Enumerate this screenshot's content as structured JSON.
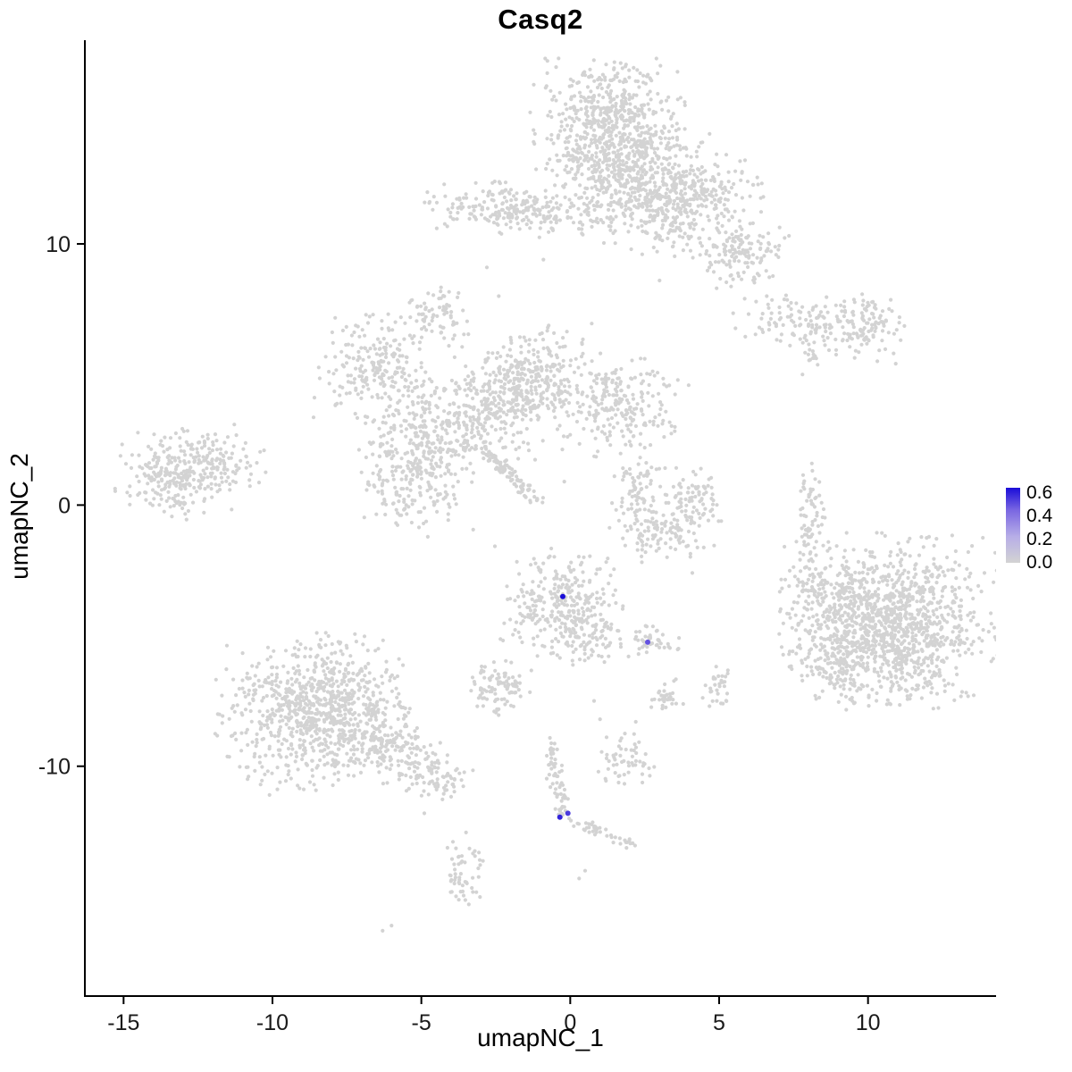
{
  "chart_data": {
    "type": "scatter",
    "title": "Casq2",
    "xlabel": "umapNC_1",
    "ylabel": "umapNC_2",
    "xlim": [
      -16.3,
      14.3
    ],
    "ylim": [
      -18.8,
      17.8
    ],
    "xticks": [
      "-15",
      "-10",
      "-5",
      "0",
      "5",
      "10"
    ],
    "xtick_values": [
      -15,
      -10,
      -5,
      0,
      5,
      10
    ],
    "yticks": [
      "10",
      "0",
      "-10"
    ],
    "ytick_values": [
      10,
      0,
      -10
    ],
    "grid": false,
    "background_color": "#ffffff",
    "axis_color": "#000000",
    "point_color": "#d3d3d3",
    "point_radius": 2.1,
    "highlight_radius": 3.0,
    "rng_seed": 42,
    "legend": {
      "position": "right",
      "labels": [
        "0.6",
        "0.4",
        "0.2",
        "0.0"
      ],
      "tick_values": [
        0.6,
        0.4,
        0.2,
        0.0
      ],
      "vmin": 0.0,
      "vmax": 0.65,
      "gradient": [
        {
          "t": 0.0,
          "color": "#d3d3d3"
        },
        {
          "t": 0.35,
          "color": "#b7aee7"
        },
        {
          "t": 0.7,
          "color": "#7a67e2"
        },
        {
          "t": 1.0,
          "color": "#1a0dd8"
        }
      ]
    },
    "clusters": [
      {
        "cx": 1.3,
        "cy": 14.3,
        "sx": 1.15,
        "sy": 1.25,
        "n": 700
      },
      {
        "cx": 2.7,
        "cy": 12.5,
        "sx": 0.9,
        "sy": 0.85,
        "n": 230
      },
      {
        "cx": 4.3,
        "cy": 11.9,
        "sx": 0.95,
        "sy": 0.7,
        "n": 210
      },
      {
        "cx": 5.6,
        "cy": 9.7,
        "sx": 0.75,
        "sy": 0.6,
        "n": 150
      },
      {
        "cx": 3.4,
        "cy": 10.7,
        "sx": 0.5,
        "sy": 0.5,
        "n": 70
      },
      {
        "cx": 1.5,
        "cy": 11.7,
        "sx": 0.6,
        "sy": 0.8,
        "n": 110
      },
      {
        "cx": -2.3,
        "cy": 11.4,
        "sx": 1.25,
        "sy": 0.42,
        "n": 180
      },
      {
        "cx": -0.4,
        "cy": 11.1,
        "sx": 0.9,
        "sy": 0.4,
        "n": 70
      },
      {
        "cx": -4.5,
        "cy": 7.3,
        "sx": 0.5,
        "sy": 0.55,
        "n": 75
      },
      {
        "cx": 8.3,
        "cy": 6.9,
        "sx": 1.3,
        "sy": 0.48,
        "n": 160,
        "rot": -8
      },
      {
        "cx": 9.9,
        "cy": 7.2,
        "sx": 0.6,
        "sy": 0.45,
        "n": 70
      },
      {
        "cx": 8.2,
        "cy": 5.7,
        "sx": 0.25,
        "sy": 0.3,
        "n": 14
      },
      {
        "cx": -6.6,
        "cy": 5.3,
        "sx": 0.85,
        "sy": 1.0,
        "n": 210
      },
      {
        "cx": -1.1,
        "cy": 5.0,
        "sx": 0.85,
        "sy": 0.85,
        "n": 220
      },
      {
        "cx": 1.7,
        "cy": 3.8,
        "sx": 0.95,
        "sy": 0.85,
        "n": 230
      },
      {
        "cx": -3.6,
        "cy": 3.3,
        "sx": 1.5,
        "sy": 1.0,
        "n": 360
      },
      {
        "cx": -5.2,
        "cy": 1.2,
        "sx": 0.85,
        "sy": 1.05,
        "n": 260
      },
      {
        "cx": -2.0,
        "cy": 4.4,
        "sx": 0.8,
        "sy": 0.7,
        "n": 120
      },
      {
        "cx": -12.8,
        "cy": 1.3,
        "sx": 1.15,
        "sy": 0.75,
        "n": 340,
        "rot": 12
      },
      {
        "cx": 2.3,
        "cy": 0.6,
        "sx": 0.4,
        "sy": 0.7,
        "n": 75
      },
      {
        "cx": 3.1,
        "cy": -1.1,
        "sx": 0.8,
        "sy": 0.5,
        "n": 115
      },
      {
        "cx": 4.2,
        "cy": 0.2,
        "sx": 0.4,
        "sy": 0.6,
        "n": 75
      },
      {
        "cx": 8.1,
        "cy": -0.5,
        "sx": 0.22,
        "sy": 1.0,
        "n": 75
      },
      {
        "cx": -0.3,
        "cy": -3.8,
        "sx": 0.95,
        "sy": 0.95,
        "n": 300
      },
      {
        "cx": 0.6,
        "cy": -5.1,
        "sx": 0.5,
        "sy": 0.5,
        "n": 65
      },
      {
        "cx": 2.7,
        "cy": -5.2,
        "sx": 0.45,
        "sy": 0.28,
        "n": 45
      },
      {
        "cx": -2.4,
        "cy": -7.0,
        "sx": 0.55,
        "sy": 0.5,
        "n": 95
      },
      {
        "cx": 10.7,
        "cy": -4.5,
        "sx": 1.55,
        "sy": 1.45,
        "n": 1200
      },
      {
        "cx": 8.6,
        "cy": -3.5,
        "sx": 0.7,
        "sy": 0.9,
        "n": 130
      },
      {
        "cx": 8.9,
        "cy": -6.3,
        "sx": 0.6,
        "sy": 0.55,
        "n": 85
      },
      {
        "cx": -8.4,
        "cy": -7.9,
        "sx": 1.5,
        "sy": 1.3,
        "n": 900
      },
      {
        "cx": -5.9,
        "cy": -9.5,
        "sx": 1.0,
        "sy": 0.55,
        "n": 160,
        "rot": -25
      },
      {
        "cx": -4.4,
        "cy": -10.4,
        "sx": 0.5,
        "sy": 0.4,
        "n": 60
      },
      {
        "cx": 1.9,
        "cy": -9.7,
        "sx": 0.4,
        "sy": 0.5,
        "n": 55
      },
      {
        "cx": 3.2,
        "cy": -7.4,
        "sx": 0.28,
        "sy": 0.35,
        "n": 30
      },
      {
        "cx": 4.9,
        "cy": -7.1,
        "sx": 0.28,
        "sy": 0.4,
        "n": 32
      },
      {
        "cx": -3.6,
        "cy": -14.1,
        "sx": 0.3,
        "sy": 0.75,
        "n": 55
      }
    ],
    "streaks": [
      {
        "x1": -2.9,
        "y1": 2.1,
        "x2": -1.1,
        "y2": 0.1,
        "w": 0.12,
        "n": 90
      },
      {
        "x1": -0.7,
        "y1": -9.2,
        "x2": -0.2,
        "y2": -12.0,
        "w": 0.15,
        "n": 70
      },
      {
        "x1": 0.1,
        "y1": -12.1,
        "x2": 2.3,
        "y2": -13.1,
        "w": 0.12,
        "n": 40
      }
    ],
    "singles": [
      [
        -2.8,
        9.1
      ],
      [
        -2.4,
        8.0
      ],
      [
        -0.9,
        9.4
      ],
      [
        2.5,
        2.2
      ],
      [
        4.1,
        -2.6
      ],
      [
        7.8,
        5.0
      ],
      [
        -4.9,
        -11.8
      ],
      [
        -10.4,
        -10.7
      ],
      [
        -10.1,
        -11.1
      ],
      [
        -6.3,
        -16.3
      ],
      [
        -6.0,
        -16.1
      ],
      [
        0.3,
        -14.3
      ],
      [
        0.5,
        -14.0
      ],
      [
        1.0,
        -8.2
      ],
      [
        2.2,
        -8.3
      ],
      [
        -7.7,
        3.9
      ],
      [
        3.0,
        8.6
      ],
      [
        6.6,
        8.0
      ],
      [
        -0.2,
        0.9
      ],
      [
        0.8,
        -7.5
      ]
    ],
    "highlighted_points": [
      {
        "x": -0.25,
        "y": -3.5,
        "value": 0.65
      },
      {
        "x": 2.6,
        "y": -5.25,
        "value": 0.5
      },
      {
        "x": -0.35,
        "y": -11.95,
        "value": 0.6
      },
      {
        "x": -0.08,
        "y": -11.8,
        "value": 0.55
      }
    ]
  }
}
